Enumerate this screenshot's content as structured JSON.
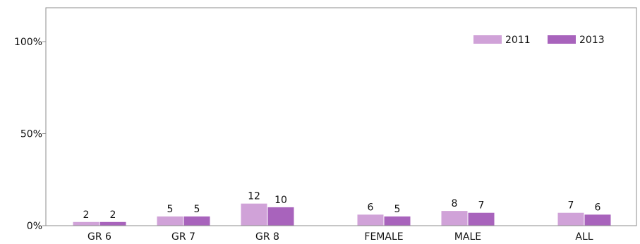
{
  "chart_data": {
    "type": "bar",
    "title": "",
    "xlabel": "",
    "ylabel": "",
    "ylim": [
      0,
      100
    ],
    "yticks": [
      {
        "value": 0,
        "label": "0%"
      },
      {
        "value": 50,
        "label": "50%"
      },
      {
        "value": 100,
        "label": "100%"
      }
    ],
    "grid": false,
    "legend_position": "top-right",
    "categories": [
      "GR 6",
      "GR 7",
      "GR 8",
      "FEMALE",
      "MALE",
      "ALL"
    ],
    "category_groups": [
      [
        0,
        1,
        2
      ],
      [
        3,
        4
      ],
      [
        5
      ]
    ],
    "series": [
      {
        "name": "2011",
        "color": "#d0a2d8",
        "values": [
          2,
          5,
          12,
          6,
          8,
          7
        ],
        "labels": [
          "2",
          "5",
          "12",
          "6",
          "8",
          "7"
        ]
      },
      {
        "name": "2013",
        "color": "#a863bc",
        "values": [
          2,
          5,
          10,
          5,
          7,
          6
        ],
        "labels": [
          "2",
          "5",
          "10",
          "5",
          "7",
          "6"
        ]
      }
    ],
    "colors": {
      "frame": "#8c8c8c",
      "axis": "#8c8c8c",
      "text": "#111111"
    }
  }
}
